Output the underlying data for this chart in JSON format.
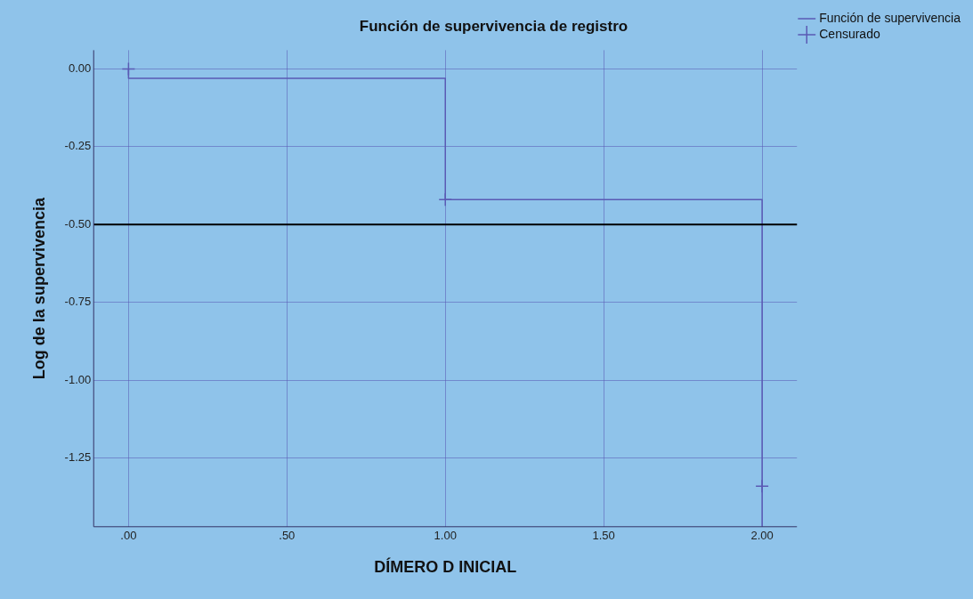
{
  "chart_data": {
    "type": "step",
    "title": "Función de supervivencia de registro",
    "xlabel": "DÍMERO D INICIAL",
    "ylabel": "Log de la supervivencia",
    "series": [
      {
        "name": "Función de supervivencia",
        "color": "#5a5ab4",
        "x": [
          0,
          0,
          1,
          2,
          2
        ],
        "values": [
          0,
          -0.03,
          -0.42,
          -0.42,
          -1.47
        ]
      },
      {
        "name": "Censurado",
        "type": "scatter",
        "marker": "cross",
        "color": "#5a5ab4",
        "x": [
          0,
          1,
          2
        ],
        "values": [
          0,
          -0.42,
          -1.34
        ]
      }
    ],
    "xlim": [
      -0.11,
      2.11
    ],
    "ylim": [
      -1.47,
      0.06
    ],
    "xticks": [
      {
        "value": 0,
        "label": ".00"
      },
      {
        "value": 0.5,
        "label": ".50"
      },
      {
        "value": 1,
        "label": "1.00"
      },
      {
        "value": 1.5,
        "label": "1.50"
      },
      {
        "value": 2,
        "label": "2.00"
      }
    ],
    "yticks": [
      {
        "value": 0,
        "label": "0.00"
      },
      {
        "value": -0.25,
        "label": "-0.25"
      },
      {
        "value": -0.5,
        "label": "-0.50"
      },
      {
        "value": -0.75,
        "label": "-0.75"
      },
      {
        "value": -1,
        "label": "-1.00"
      },
      {
        "value": -1.25,
        "label": "-1.25"
      }
    ],
    "ref_lines": [
      {
        "axis": "y",
        "value": -0.5,
        "color": "#000000"
      }
    ],
    "grid": true,
    "legend": "top right"
  }
}
